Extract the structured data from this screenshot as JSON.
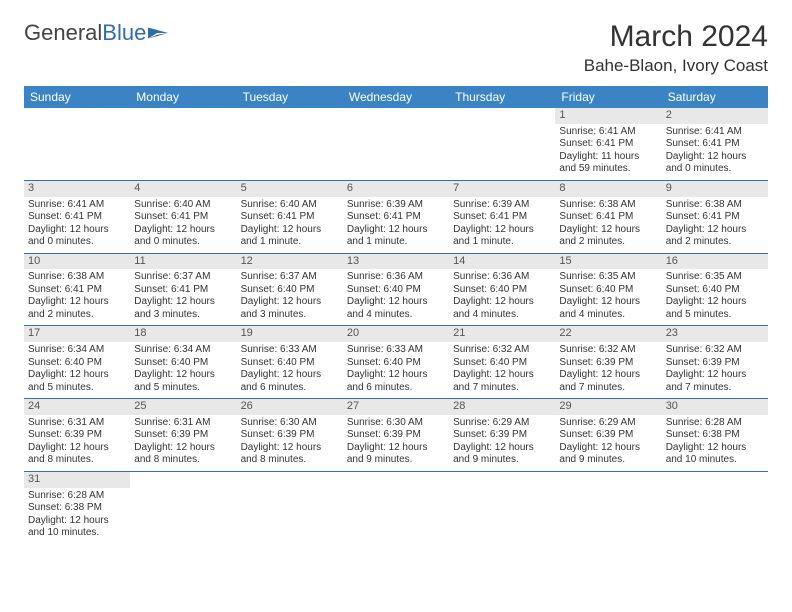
{
  "logo": {
    "general": "General",
    "blue": "Blue"
  },
  "title": "March 2024",
  "location": "Bahe-Blaon, Ivory Coast",
  "colors": {
    "header_bg": "#3a83c4",
    "row_divider": "#3a6ea8",
    "daynum_bg": "#e8e8e8"
  },
  "weekdays": [
    "Sunday",
    "Monday",
    "Tuesday",
    "Wednesday",
    "Thursday",
    "Friday",
    "Saturday"
  ],
  "days": {
    "1": {
      "sr": "Sunrise: 6:41 AM",
      "ss": "Sunset: 6:41 PM",
      "dl": "Daylight: 11 hours and 59 minutes."
    },
    "2": {
      "sr": "Sunrise: 6:41 AM",
      "ss": "Sunset: 6:41 PM",
      "dl": "Daylight: 12 hours and 0 minutes."
    },
    "3": {
      "sr": "Sunrise: 6:41 AM",
      "ss": "Sunset: 6:41 PM",
      "dl": "Daylight: 12 hours and 0 minutes."
    },
    "4": {
      "sr": "Sunrise: 6:40 AM",
      "ss": "Sunset: 6:41 PM",
      "dl": "Daylight: 12 hours and 0 minutes."
    },
    "5": {
      "sr": "Sunrise: 6:40 AM",
      "ss": "Sunset: 6:41 PM",
      "dl": "Daylight: 12 hours and 1 minute."
    },
    "6": {
      "sr": "Sunrise: 6:39 AM",
      "ss": "Sunset: 6:41 PM",
      "dl": "Daylight: 12 hours and 1 minute."
    },
    "7": {
      "sr": "Sunrise: 6:39 AM",
      "ss": "Sunset: 6:41 PM",
      "dl": "Daylight: 12 hours and 1 minute."
    },
    "8": {
      "sr": "Sunrise: 6:38 AM",
      "ss": "Sunset: 6:41 PM",
      "dl": "Daylight: 12 hours and 2 minutes."
    },
    "9": {
      "sr": "Sunrise: 6:38 AM",
      "ss": "Sunset: 6:41 PM",
      "dl": "Daylight: 12 hours and 2 minutes."
    },
    "10": {
      "sr": "Sunrise: 6:38 AM",
      "ss": "Sunset: 6:41 PM",
      "dl": "Daylight: 12 hours and 2 minutes."
    },
    "11": {
      "sr": "Sunrise: 6:37 AM",
      "ss": "Sunset: 6:41 PM",
      "dl": "Daylight: 12 hours and 3 minutes."
    },
    "12": {
      "sr": "Sunrise: 6:37 AM",
      "ss": "Sunset: 6:40 PM",
      "dl": "Daylight: 12 hours and 3 minutes."
    },
    "13": {
      "sr": "Sunrise: 6:36 AM",
      "ss": "Sunset: 6:40 PM",
      "dl": "Daylight: 12 hours and 4 minutes."
    },
    "14": {
      "sr": "Sunrise: 6:36 AM",
      "ss": "Sunset: 6:40 PM",
      "dl": "Daylight: 12 hours and 4 minutes."
    },
    "15": {
      "sr": "Sunrise: 6:35 AM",
      "ss": "Sunset: 6:40 PM",
      "dl": "Daylight: 12 hours and 4 minutes."
    },
    "16": {
      "sr": "Sunrise: 6:35 AM",
      "ss": "Sunset: 6:40 PM",
      "dl": "Daylight: 12 hours and 5 minutes."
    },
    "17": {
      "sr": "Sunrise: 6:34 AM",
      "ss": "Sunset: 6:40 PM",
      "dl": "Daylight: 12 hours and 5 minutes."
    },
    "18": {
      "sr": "Sunrise: 6:34 AM",
      "ss": "Sunset: 6:40 PM",
      "dl": "Daylight: 12 hours and 5 minutes."
    },
    "19": {
      "sr": "Sunrise: 6:33 AM",
      "ss": "Sunset: 6:40 PM",
      "dl": "Daylight: 12 hours and 6 minutes."
    },
    "20": {
      "sr": "Sunrise: 6:33 AM",
      "ss": "Sunset: 6:40 PM",
      "dl": "Daylight: 12 hours and 6 minutes."
    },
    "21": {
      "sr": "Sunrise: 6:32 AM",
      "ss": "Sunset: 6:40 PM",
      "dl": "Daylight: 12 hours and 7 minutes."
    },
    "22": {
      "sr": "Sunrise: 6:32 AM",
      "ss": "Sunset: 6:39 PM",
      "dl": "Daylight: 12 hours and 7 minutes."
    },
    "23": {
      "sr": "Sunrise: 6:32 AM",
      "ss": "Sunset: 6:39 PM",
      "dl": "Daylight: 12 hours and 7 minutes."
    },
    "24": {
      "sr": "Sunrise: 6:31 AM",
      "ss": "Sunset: 6:39 PM",
      "dl": "Daylight: 12 hours and 8 minutes."
    },
    "25": {
      "sr": "Sunrise: 6:31 AM",
      "ss": "Sunset: 6:39 PM",
      "dl": "Daylight: 12 hours and 8 minutes."
    },
    "26": {
      "sr": "Sunrise: 6:30 AM",
      "ss": "Sunset: 6:39 PM",
      "dl": "Daylight: 12 hours and 8 minutes."
    },
    "27": {
      "sr": "Sunrise: 6:30 AM",
      "ss": "Sunset: 6:39 PM",
      "dl": "Daylight: 12 hours and 9 minutes."
    },
    "28": {
      "sr": "Sunrise: 6:29 AM",
      "ss": "Sunset: 6:39 PM",
      "dl": "Daylight: 12 hours and 9 minutes."
    },
    "29": {
      "sr": "Sunrise: 6:29 AM",
      "ss": "Sunset: 6:39 PM",
      "dl": "Daylight: 12 hours and 9 minutes."
    },
    "30": {
      "sr": "Sunrise: 6:28 AM",
      "ss": "Sunset: 6:38 PM",
      "dl": "Daylight: 12 hours and 10 minutes."
    },
    "31": {
      "sr": "Sunrise: 6:28 AM",
      "ss": "Sunset: 6:38 PM",
      "dl": "Daylight: 12 hours and 10 minutes."
    }
  },
  "grid": [
    [
      null,
      null,
      null,
      null,
      null,
      "1",
      "2"
    ],
    [
      "3",
      "4",
      "5",
      "6",
      "7",
      "8",
      "9"
    ],
    [
      "10",
      "11",
      "12",
      "13",
      "14",
      "15",
      "16"
    ],
    [
      "17",
      "18",
      "19",
      "20",
      "21",
      "22",
      "23"
    ],
    [
      "24",
      "25",
      "26",
      "27",
      "28",
      "29",
      "30"
    ],
    [
      "31",
      null,
      null,
      null,
      null,
      null,
      null
    ]
  ]
}
